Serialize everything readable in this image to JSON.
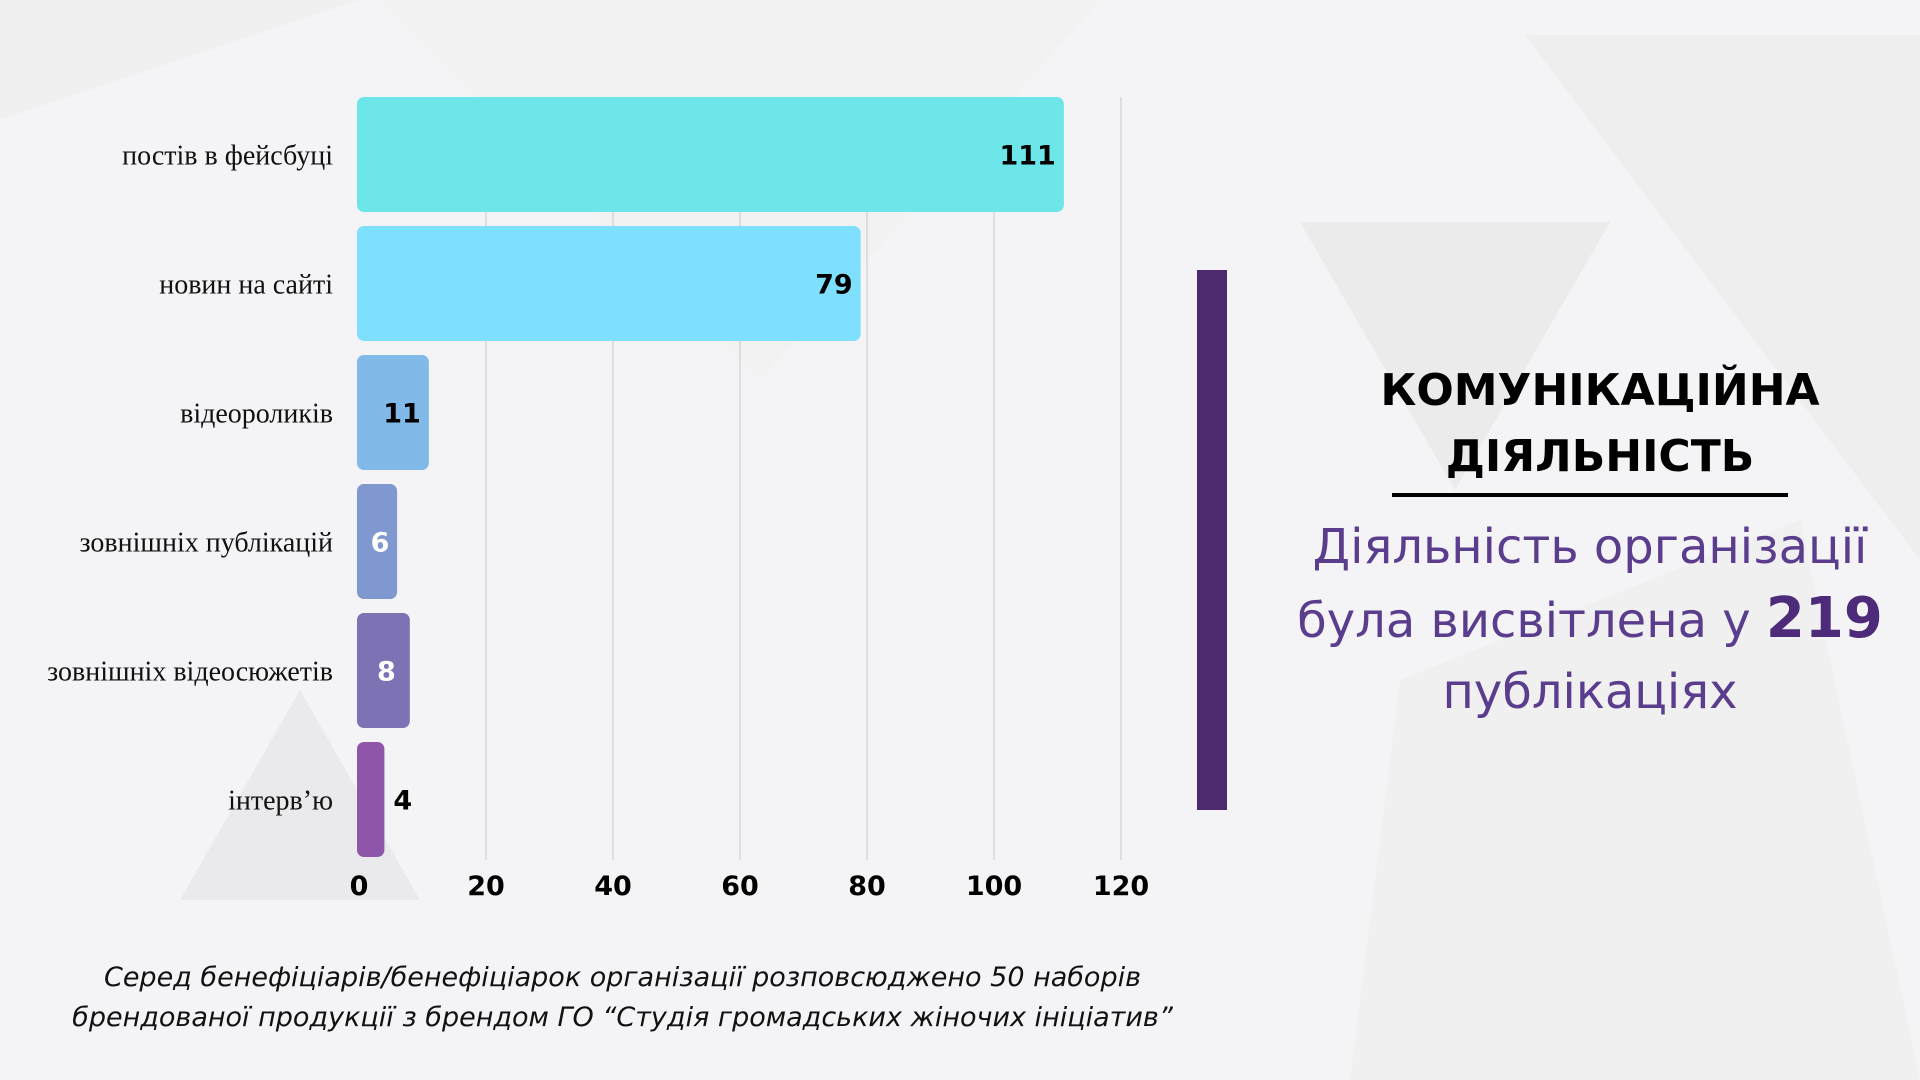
{
  "chart_data": {
    "type": "bar",
    "orientation": "horizontal",
    "categories": [
      "постів в фейсбуці",
      "новин на сайті",
      "відеороликів",
      "зовнішніх публікацій",
      "зовнішніх відеосюжетів",
      "інтерв’ю"
    ],
    "values": [
      111,
      79,
      11,
      6,
      8,
      4
    ],
    "bar_colors": [
      "#6ce6e8",
      "#7ee0fc",
      "#81b9e9",
      "#7f98cf",
      "#7c72b4",
      "#8e55a8"
    ],
    "value_label_colors": [
      "#000000",
      "#000000",
      "#000000",
      "#ffffff",
      "#ffffff",
      "#000000"
    ],
    "xlim": [
      0,
      120
    ],
    "xticks": [
      0,
      20,
      40,
      60,
      80,
      100,
      120
    ],
    "grid": "vertical",
    "legend": "none"
  },
  "panel": {
    "title_line1": "КОМУНІКАЦІЙНА",
    "title_line2": "ДІЯЛЬНІСТЬ",
    "summary_part1": "Діяльність організації",
    "summary_part2": "була висвітлена у ",
    "summary_highlight": "219",
    "summary_part3": "публікаціях",
    "accent_color": "#4e2a6e",
    "text_color": "#5a3d8c"
  },
  "footnote": {
    "line1": "Серед бенефіціарів/бенефіціарок організації розповсюджено 50 наборів",
    "line2": "брендованої продукції з брендом ГО “Студія громадських жіночих ініціатив”"
  }
}
